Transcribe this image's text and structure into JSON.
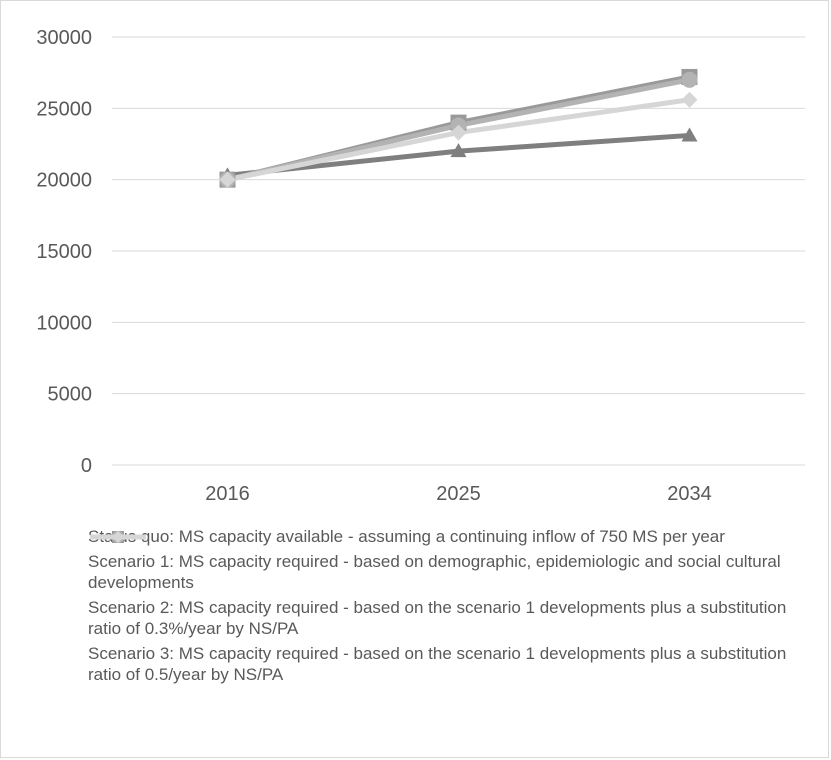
{
  "chart_data": {
    "type": "line",
    "title": "",
    "xlabel": "",
    "ylabel": "",
    "categories": [
      "2016",
      "2025",
      "2034"
    ],
    "ylim": [
      0,
      30000
    ],
    "yticks": [
      0,
      5000,
      10000,
      15000,
      20000,
      25000,
      30000
    ],
    "grid": true,
    "legend_position": "bottom",
    "series": [
      {
        "name": "Status quo: MS capacity available - assuming a continuing inflow of 750 MS per year",
        "values": [
          20300,
          22000,
          23100
        ],
        "color": "#7f7f7f",
        "marker": "triangle"
      },
      {
        "name": "Scenario 1: MS capacity required - based on demographic, epidemiologic and social cultural developments",
        "values": [
          20000,
          24000,
          27200
        ],
        "color": "#999999",
        "marker": "square"
      },
      {
        "name": "Scenario 2: MS capacity required - based on the scenario 1 developments plus a substitution ratio of 0.3%/year by NS/PA",
        "values": [
          20000,
          23800,
          27000
        ],
        "color": "#b3b3b3",
        "marker": "circle"
      },
      {
        "name": "Scenario 3: MS capacity required - based on the scenario 1 developments plus a substitution ratio of 0.5/year by NS/PA",
        "values": [
          20000,
          23300,
          25600
        ],
        "color": "#d6d6d6",
        "marker": "diamond"
      }
    ]
  }
}
